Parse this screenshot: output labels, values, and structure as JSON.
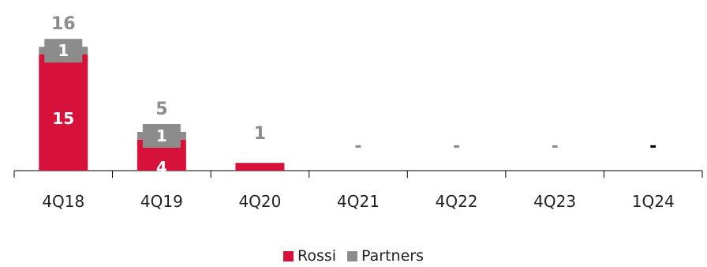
{
  "chart_data": {
    "type": "bar",
    "stacked": true,
    "categories": [
      "4Q18",
      "4Q19",
      "4Q20",
      "4Q21",
      "4Q22",
      "4Q23",
      "1Q24"
    ],
    "series": [
      {
        "name": "Rossi",
        "color": "#d6123a",
        "values": [
          15,
          4,
          1,
          0,
          0,
          0,
          0
        ],
        "labels": [
          "15",
          "4",
          "",
          "",
          "",
          "",
          ""
        ]
      },
      {
        "name": "Partners",
        "color": "#8c8c8c",
        "values": [
          1,
          1,
          0,
          0,
          0,
          0,
          0
        ],
        "labels": [
          "1",
          "1",
          "",
          "",
          "",
          "",
          ""
        ]
      }
    ],
    "totals": [
      "16",
      "5",
      "1",
      "-",
      "-",
      "-",
      "-"
    ],
    "total_label_colors": [
      "#8c8c8c",
      "#8c8c8c",
      "#8c8c8c",
      "#8c8c8c",
      "#8c8c8c",
      "#8c8c8c",
      "#000000"
    ],
    "ylim": [
      0,
      16
    ],
    "grid": false,
    "legend_position": "bottom-center"
  }
}
